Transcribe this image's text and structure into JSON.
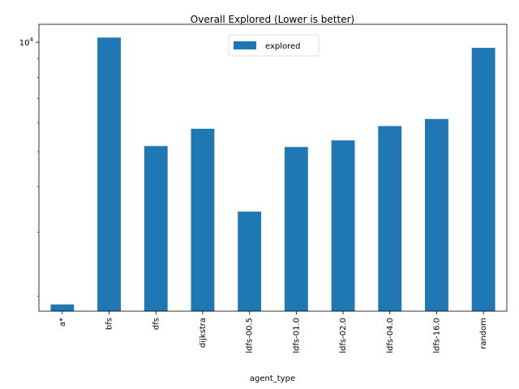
{
  "chart_data": {
    "type": "bar",
    "title": "Overall Explored (Lower is better)",
    "xlabel": "agent_type",
    "ylabel": "",
    "yscale": "log",
    "ylim": [
      1820,
      11200
    ],
    "y_major_tick_labels": [
      {
        "value": 10000,
        "base": "10",
        "exponent": "4"
      }
    ],
    "y_minor_ticks": [
      2000,
      3000,
      4000,
      5000,
      6000,
      7000,
      8000,
      9000
    ],
    "categories": [
      "a*",
      "bfs",
      "dfs",
      "dijkstra",
      "ldfs-00.5",
      "ldfs-01.0",
      "ldfs-02.0",
      "ldfs-04.0",
      "ldfs-16.0",
      "random"
    ],
    "series": [
      {
        "name": "explored",
        "values": [
          1900,
          10300,
          5180,
          5780,
          3420,
          5150,
          5370,
          5880,
          6150,
          9650
        ],
        "color": "#1f77b4"
      }
    ],
    "legend": {
      "position": "top-center",
      "entries": [
        "explored"
      ]
    },
    "grid": false
  }
}
